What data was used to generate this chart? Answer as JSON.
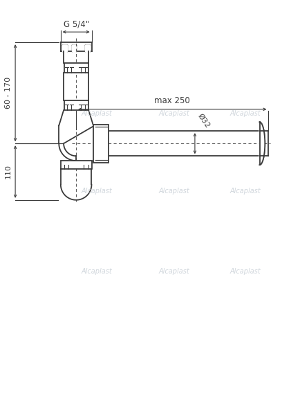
{
  "bg_color": "#ffffff",
  "line_color": "#3a3a3a",
  "dim_line_color": "#3a3a3a",
  "watermark_color": "#c8cfd6",
  "watermark_text": "Alcaplast",
  "annotations": {
    "g_54": "G 5/4\"",
    "max_250": "max 250",
    "dim_60_170": "60 - 170",
    "dim_110": "110",
    "diam_32": "Ø32"
  }
}
